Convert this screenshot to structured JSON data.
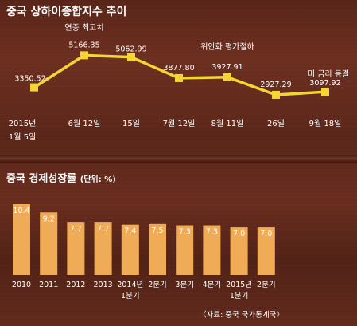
{
  "titles": {
    "line_title": "중국 상하이종합지수 추이",
    "bar_title": "중국 경제성장률",
    "bar_unit": "(단위: %)",
    "source": "〈자료: 중국 국가통계국〉"
  },
  "colors": {
    "line": "#f3d633",
    "bar": "#f0ab57",
    "text": "#ffffff"
  },
  "chart_data": [
    {
      "type": "line",
      "title": "중국 상하이종합지수 추이",
      "categories": [
        [
          "2015년",
          "1월 5일"
        ],
        [
          "6월 12일"
        ],
        [
          "15일"
        ],
        [
          "7월 12일"
        ],
        [
          "8월 11일"
        ],
        [
          "26일"
        ],
        [
          "9월 18일"
        ]
      ],
      "series": [
        {
          "values": [
            3350.52,
            5166.35,
            5062.99,
            3877.8,
            3927.91,
            2927.29,
            3097.92
          ]
        }
      ],
      "value_labels": [
        "3350.52",
        "5166.35",
        "5062.99",
        "3877.80",
        "3927.91",
        "2927.29",
        "3097.92"
      ],
      "annotations": [
        "",
        "연중 최고치",
        "",
        "",
        "위안화 평가절하",
        "",
        "미 금리 동결"
      ],
      "ylim": [
        2700,
        5500
      ],
      "grid": false
    },
    {
      "type": "bar",
      "title": "중국 경제성장률",
      "ylabel": "(단위: %)",
      "categories": [
        [
          "2010"
        ],
        [
          "2011"
        ],
        [
          "2012"
        ],
        [
          "2013"
        ],
        [
          "2014년",
          "1분기"
        ],
        [
          "2분기"
        ],
        [
          "3분기"
        ],
        [
          "4분기"
        ],
        [
          "2015년",
          "1분기"
        ],
        [
          "2분기"
        ]
      ],
      "values": [
        10.4,
        9.2,
        7.7,
        7.7,
        7.4,
        7.5,
        7.3,
        7.3,
        7.0,
        7.0
      ],
      "value_labels": [
        "10.4",
        "9.2",
        "7.7",
        "7.7",
        "7.4",
        "7.5",
        "7.3",
        "7.3",
        "7.0",
        "7.0"
      ],
      "ylim": [
        0,
        10.4
      ],
      "grid": false
    }
  ]
}
